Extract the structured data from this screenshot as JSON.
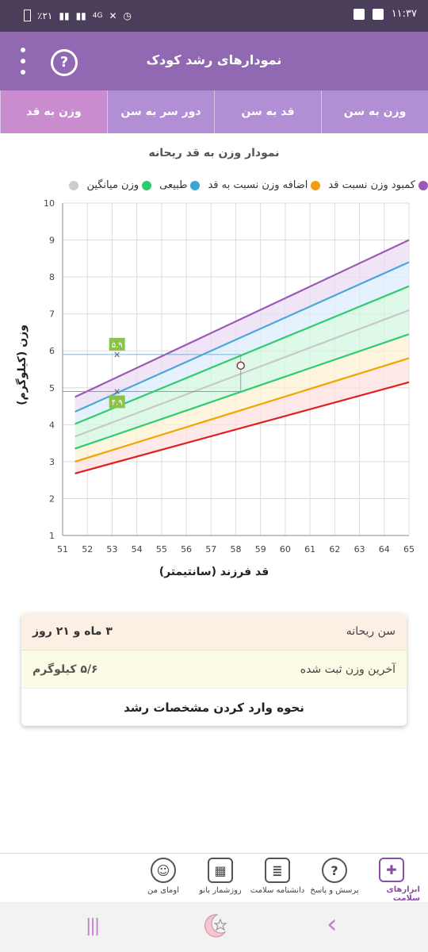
{
  "status": {
    "battery": "٪۲۱",
    "network": "4G",
    "time": "۱۱:۳۷"
  },
  "header": {
    "title": "نمودارهای رشد کودک",
    "help_glyph": "?"
  },
  "tabs": [
    "وزن به سن",
    "قد به سن",
    "دور سر به سن",
    "وزن به قد"
  ],
  "active_tab": 3,
  "chart_data": {
    "type": "line",
    "title": "نمودار وزن به قد ریحانه",
    "xlabel": "قد فرزند (سانتیمتر)",
    "ylabel": "وزن (کیلوگرم)",
    "xlim": [
      51,
      65
    ],
    "ylim": [
      1,
      10
    ],
    "x_ticks": [
      51,
      52,
      53,
      54,
      55,
      56,
      57,
      58,
      59,
      60,
      61,
      62,
      63,
      64,
      65
    ],
    "y_ticks": [
      1,
      2,
      3,
      4,
      5,
      6,
      7,
      8,
      9,
      10
    ],
    "grid": true,
    "legend": [
      {
        "label": "کمبود وزن نسبت قد",
        "color": "#9b59b6"
      },
      {
        "label": "اضافه وزن نسبت به قد",
        "color": "#f39c12"
      },
      {
        "label": "طبیعی",
        "color": "#3ba7d0"
      },
      {
        "label": "وزن میانگین",
        "color": "#2ecc71"
      },
      {
        "label": "",
        "color": "#cccccc"
      }
    ],
    "x": [
      51.5,
      65
    ],
    "series": [
      {
        "color": "#9b59b6",
        "values": [
          4.75,
          9.0
        ]
      },
      {
        "color": "#4aa8d8",
        "values": [
          4.35,
          8.4
        ]
      },
      {
        "color": "#2ecc71",
        "values": [
          4.02,
          7.75
        ]
      },
      {
        "color": "#c8c8c8",
        "values": [
          3.68,
          7.1
        ]
      },
      {
        "color": "#2ecc71",
        "values": [
          3.35,
          6.45
        ]
      },
      {
        "color": "#f0a500",
        "values": [
          3.0,
          5.8
        ]
      },
      {
        "color": "#e02020",
        "values": [
          2.68,
          5.15
        ]
      }
    ],
    "bands": [
      {
        "color": "#eadcf4",
        "between": [
          0,
          1
        ]
      },
      {
        "color": "#dceefc",
        "between": [
          1,
          2
        ]
      },
      {
        "color": "#d4f7e2",
        "between": [
          2,
          3
        ]
      },
      {
        "color": "#d4f7e2",
        "between": [
          3,
          4
        ]
      },
      {
        "color": "#fdf1d4",
        "between": [
          4,
          5
        ]
      },
      {
        "color": "#fde0e0",
        "between": [
          5,
          6
        ]
      }
    ],
    "markers": [
      {
        "x": 53.2,
        "y": 5.9,
        "label": "۵.۹"
      },
      {
        "x": 53.2,
        "y": 4.9,
        "label": "۴.۹"
      }
    ],
    "current_point": {
      "x": 58.2,
      "y": 5.6
    }
  },
  "info": {
    "age_label": "سن ریحانه",
    "age_value": "۳ ماه و ۲۱ روز",
    "weight_label": "آخرین وزن ثبت شده",
    "weight_value": "۵/۶ کیلوگرم",
    "howto": "نحوه وارد کردن مشخصات رشد"
  },
  "bottom_nav": [
    {
      "label": "ابزارهای سلامت",
      "icon": "medical-kit-icon",
      "active": true
    },
    {
      "label": "پرسش و پاسخ",
      "icon": "question-bubble-icon",
      "active": false
    },
    {
      "label": "دانشنامه سلامت",
      "icon": "newspaper-icon",
      "active": false
    },
    {
      "label": "روزشمار بانو",
      "icon": "calendar-icon",
      "active": false
    },
    {
      "label": "اومای من",
      "icon": "profile-icon",
      "active": false
    }
  ],
  "system_nav": {
    "recents": "|||",
    "back": "‹"
  }
}
